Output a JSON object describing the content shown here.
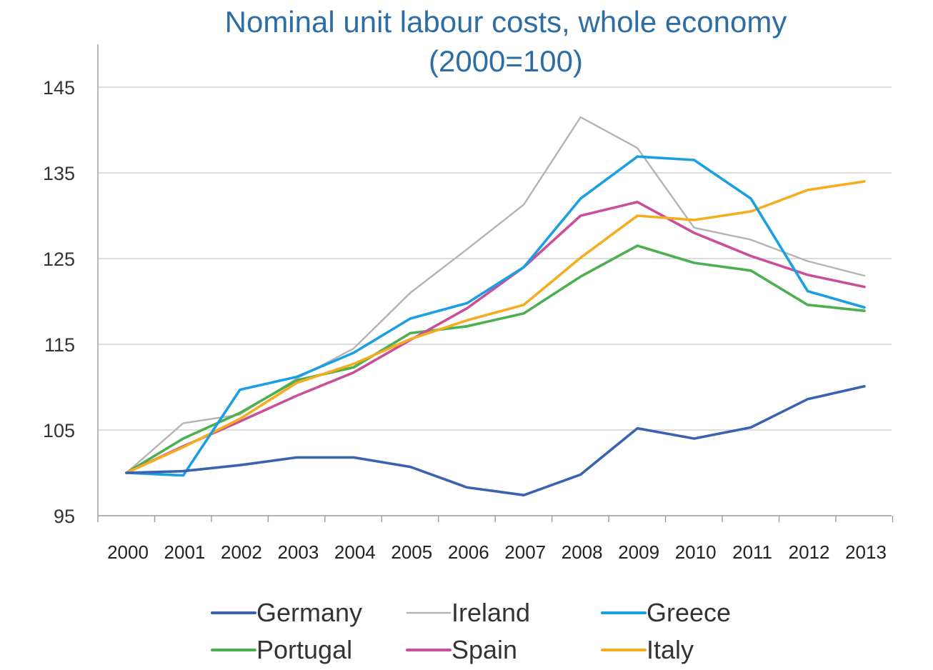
{
  "chart_data": {
    "type": "line",
    "title": "Nominal unit labour costs, whole economy",
    "subtitle": "(2000=100)",
    "xlabel": "",
    "ylabel": "",
    "x": [
      "2000",
      "2001",
      "2002",
      "2003",
      "2004",
      "2005",
      "2006",
      "2007",
      "2008",
      "2009",
      "2010",
      "2011",
      "2012",
      "2013"
    ],
    "ylim": [
      95,
      145
    ],
    "yticks": [
      95,
      105,
      115,
      125,
      135,
      145
    ],
    "grid": true,
    "legend_position": "bottom",
    "series": [
      {
        "name": "Germany",
        "color": "#3a62b0",
        "values": [
          100,
          100.2,
          100.9,
          101.8,
          101.8,
          100.7,
          98.3,
          97.4,
          99.8,
          105.2,
          104.0,
          105.3,
          108.6,
          110.1
        ]
      },
      {
        "name": "Ireland",
        "color": "#b3b3b3",
        "values": [
          100,
          105.8,
          106.8,
          111.0,
          114.5,
          121.0,
          126.1,
          131.3,
          141.5,
          137.9,
          128.6,
          127.2,
          124.7,
          123.0
        ]
      },
      {
        "name": "Greece",
        "color": "#1aa0e0",
        "values": [
          100,
          99.7,
          109.7,
          111.2,
          114.0,
          118.0,
          119.8,
          124.0,
          132.0,
          136.9,
          136.5,
          132.0,
          121.2,
          119.3
        ]
      },
      {
        "name": "Portugal",
        "color": "#4caf50",
        "values": [
          100,
          104.0,
          107.0,
          110.8,
          112.3,
          116.3,
          117.1,
          118.6,
          122.9,
          126.5,
          124.5,
          123.6,
          119.6,
          118.9
        ]
      },
      {
        "name": "Spain",
        "color": "#c94f9a",
        "values": [
          100,
          103.1,
          106.0,
          109.0,
          111.7,
          115.5,
          119.2,
          124.0,
          130.0,
          131.6,
          128.0,
          125.3,
          123.1,
          121.7
        ]
      },
      {
        "name": "Italy",
        "color": "#f5ac1e",
        "values": [
          100,
          103.0,
          106.3,
          110.5,
          112.7,
          115.6,
          117.8,
          119.6,
          125.1,
          130.0,
          129.5,
          130.5,
          133.0,
          134.0
        ]
      }
    ]
  }
}
